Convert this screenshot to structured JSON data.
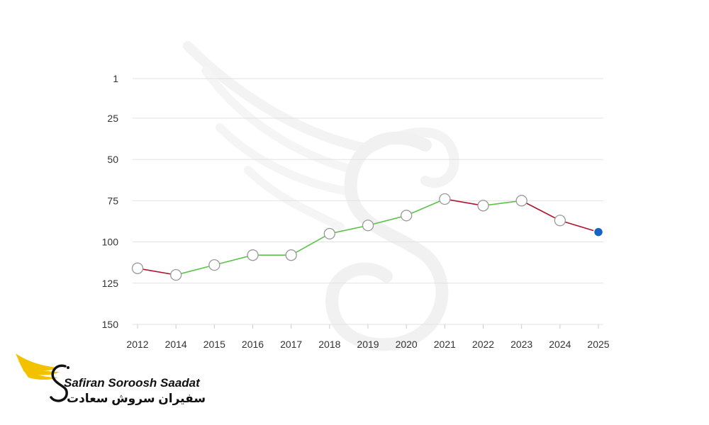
{
  "chart_data": {
    "type": "line",
    "categories": [
      "2012",
      "2014",
      "2015",
      "2016",
      "2017",
      "2018",
      "2019",
      "2020",
      "2021",
      "2022",
      "2023",
      "2024",
      "2025"
    ],
    "values": [
      116,
      120,
      114,
      108,
      108,
      95,
      90,
      84,
      74,
      78,
      75,
      87,
      94
    ],
    "y_axis_reversed": true,
    "ylim": [
      1,
      150
    ],
    "yticks": [
      "1",
      "25",
      "50",
      "75",
      "100",
      "125",
      "150"
    ],
    "grid": "horizontal",
    "colors": {
      "rise": "#5cc24a",
      "fall": "#b0102a",
      "marker_fill": "#ffffff",
      "marker_stroke": "#999999",
      "last_marker": "#1565c0",
      "grid": "#e2e2e2",
      "tick_text": "#333333"
    }
  },
  "logo": {
    "name_en": "Safiran Soroosh Saadat",
    "name_fa": "سفیران سروش سعادت",
    "colors": {
      "wing": "#f2c200",
      "ink": "#111111"
    }
  },
  "watermark": {
    "icon": "wing-s-emblem-icon"
  }
}
